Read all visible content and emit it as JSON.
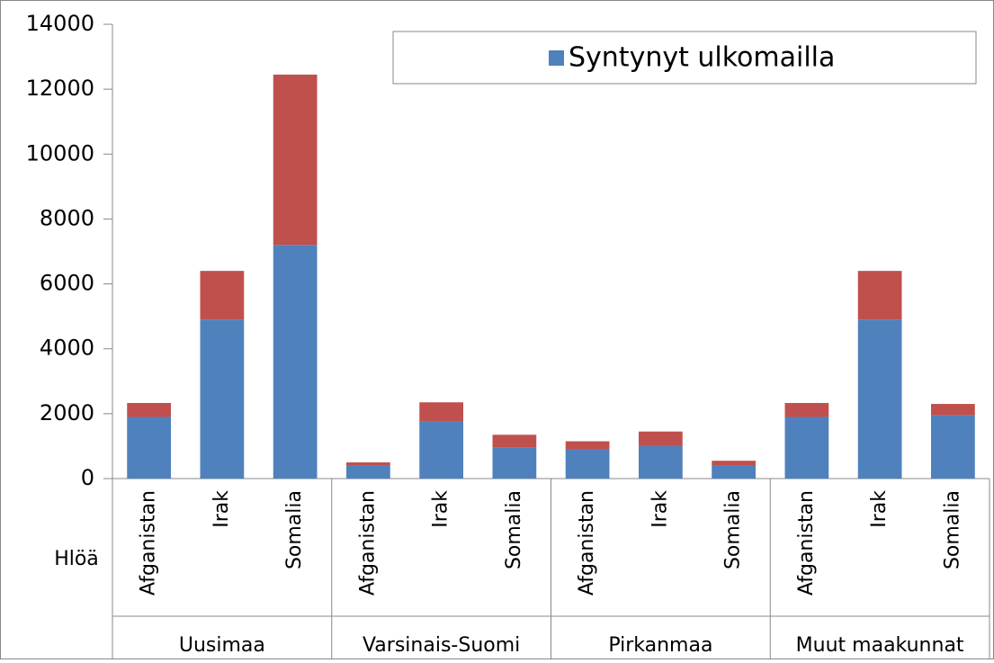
{
  "chart_data": {
    "type": "stacked_bar",
    "ylabel": "Hlöä",
    "categories": [
      "Afganistan",
      "Irak",
      "Somalia",
      "Afganistan",
      "Irak",
      "Somalia",
      "Afganistan",
      "Irak",
      "Somalia",
      "Afganistan",
      "Irak",
      "Somalia"
    ],
    "groups": [
      "Uusimaa",
      "Varsinais-Suomi",
      "Pirkanmaa",
      "Muut maakunnat"
    ],
    "series": [
      {
        "name": "Syntynyt ulkomailla",
        "color": "#4f81bd",
        "values": [
          1900,
          4900,
          7200,
          400,
          1750,
          950,
          900,
          1000,
          400,
          1900,
          4900,
          1950
        ]
      },
      {
        "color": "#c0504d",
        "values": [
          430,
          1500,
          5250,
          100,
          600,
          400,
          250,
          450,
          150,
          430,
          1500,
          350
        ]
      }
    ],
    "ylim": [
      0,
      14000
    ],
    "yticks": [
      0,
      2000,
      4000,
      6000,
      8000,
      10000,
      12000,
      14000
    ],
    "grid": false,
    "legend": "top-right"
  }
}
